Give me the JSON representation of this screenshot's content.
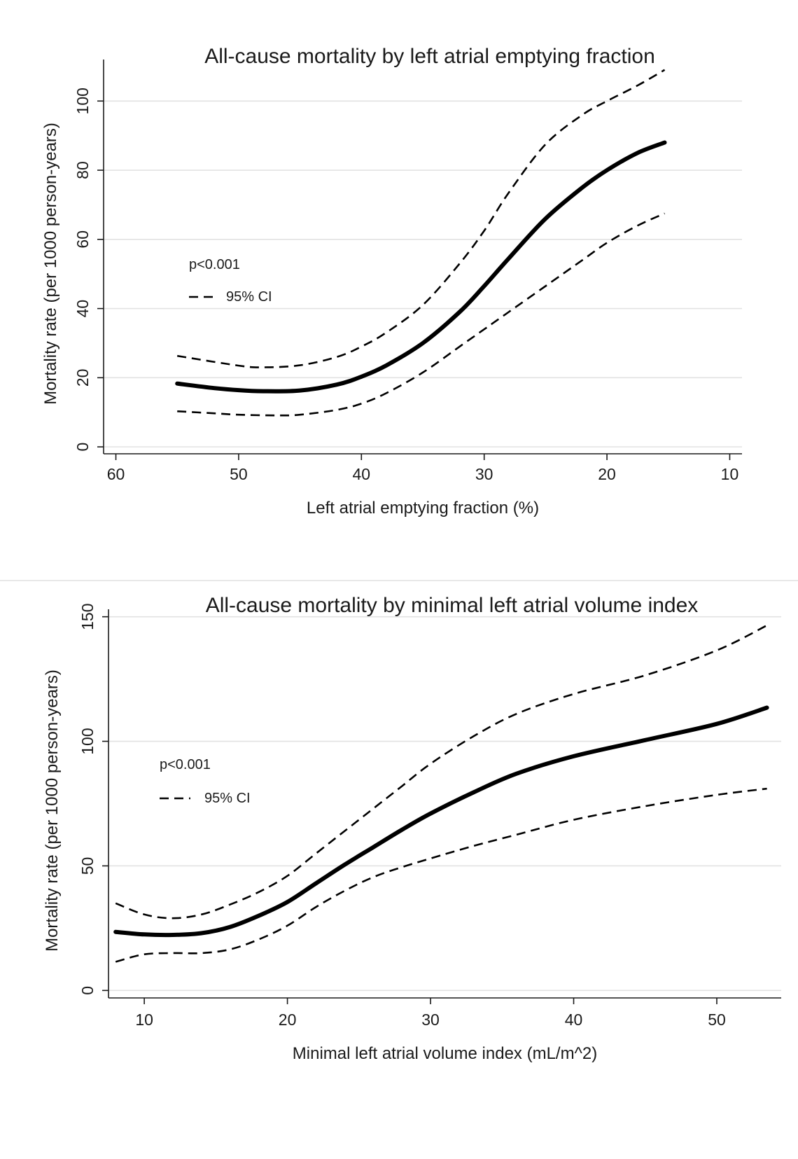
{
  "chart_data": [
    {
      "type": "line",
      "title": "All-cause mortality by left atrial emptying fraction",
      "xlabel": "Left atrial emptying fraction (%)",
      "ylabel": "Mortality rate (per 1000 person-years)",
      "x_reversed": true,
      "xlim": [
        61,
        9
      ],
      "ylim": [
        -2,
        112
      ],
      "xticks": [
        60,
        50,
        40,
        30,
        20,
        10
      ],
      "yticks": [
        0,
        20,
        40,
        60,
        80,
        100
      ],
      "grid": true,
      "annotation": "p<0.001",
      "legend": {
        "label": "95% CI",
        "placement": "middle-left"
      },
      "series": [
        {
          "role": "estimate",
          "x": [
            55,
            52,
            50,
            48,
            45,
            42,
            40,
            38,
            35,
            32,
            30,
            28,
            25,
            22,
            20,
            17.5,
            15.3
          ],
          "values": [
            18.3,
            17.0,
            16.4,
            16.1,
            16.3,
            18.0,
            20.3,
            23.5,
            30.0,
            39.0,
            46.5,
            54.5,
            66.0,
            75.0,
            80.0,
            85.0,
            88.0
          ]
        },
        {
          "role": "ci_upper",
          "x": [
            55,
            50,
            48,
            45,
            42,
            40,
            38,
            35,
            32,
            30,
            28,
            25,
            22,
            20,
            17.5,
            15.3
          ],
          "values": [
            26.3,
            23.5,
            23.0,
            23.6,
            26.0,
            29.0,
            33.0,
            41.0,
            53.0,
            62.5,
            73.5,
            87.5,
            96.0,
            100.0,
            104.5,
            109.0
          ]
        },
        {
          "role": "ci_lower",
          "x": [
            55,
            52,
            50,
            47,
            45,
            42,
            40,
            38,
            35,
            32,
            30,
            28,
            25,
            22,
            20,
            17.5,
            15.3
          ],
          "values": [
            10.3,
            9.7,
            9.3,
            9.1,
            9.3,
            10.7,
            12.5,
            15.5,
            21.5,
            29.0,
            34.0,
            39.0,
            46.5,
            54.0,
            59.0,
            64.0,
            67.5
          ]
        }
      ]
    },
    {
      "type": "line",
      "title": "All-cause mortality by minimal left atrial volume index",
      "xlabel": "Minimal left atrial volume index (mL/m^2)",
      "ylabel": "Mortality rate (per 1000 person-years)",
      "x_reversed": false,
      "xlim": [
        7.5,
        54.5
      ],
      "ylim": [
        -3,
        153
      ],
      "xticks": [
        10,
        20,
        30,
        40,
        50
      ],
      "yticks": [
        0,
        50,
        100,
        150
      ],
      "grid": true,
      "annotation": "p<0.001",
      "legend": {
        "label": "95% CI",
        "placement": "middle-left"
      },
      "series": [
        {
          "role": "estimate",
          "x": [
            8,
            10,
            12,
            14,
            16,
            18,
            20,
            22,
            24,
            26,
            28,
            30,
            33,
            36,
            40,
            45,
            50,
            53.5
          ],
          "values": [
            23.5,
            22.5,
            22.3,
            23.0,
            25.5,
            30.0,
            35.5,
            43.0,
            50.5,
            57.5,
            64.5,
            71.0,
            79.5,
            87.0,
            94.0,
            100.5,
            107.0,
            113.5
          ]
        },
        {
          "role": "ci_upper",
          "x": [
            8,
            10,
            12,
            14,
            16,
            18,
            20,
            22,
            24,
            26,
            28,
            30,
            33,
            36,
            40,
            45,
            50,
            53.5
          ],
          "values": [
            35.0,
            30.5,
            29.0,
            30.5,
            34.5,
            39.5,
            46.0,
            55.0,
            64.0,
            73.0,
            82.0,
            91.0,
            102.0,
            111.0,
            119.0,
            126.5,
            136.5,
            146.5
          ]
        },
        {
          "role": "ci_lower",
          "x": [
            8,
            10,
            12,
            14,
            16,
            18,
            20,
            22,
            24,
            26,
            28,
            30,
            33,
            36,
            40,
            45,
            50,
            53.5
          ],
          "values": [
            11.5,
            14.5,
            15.0,
            15.0,
            16.5,
            20.5,
            26.0,
            33.5,
            40.0,
            45.5,
            49.5,
            53.0,
            58.0,
            62.5,
            68.5,
            74.0,
            78.5,
            81.0
          ]
        }
      ]
    }
  ]
}
